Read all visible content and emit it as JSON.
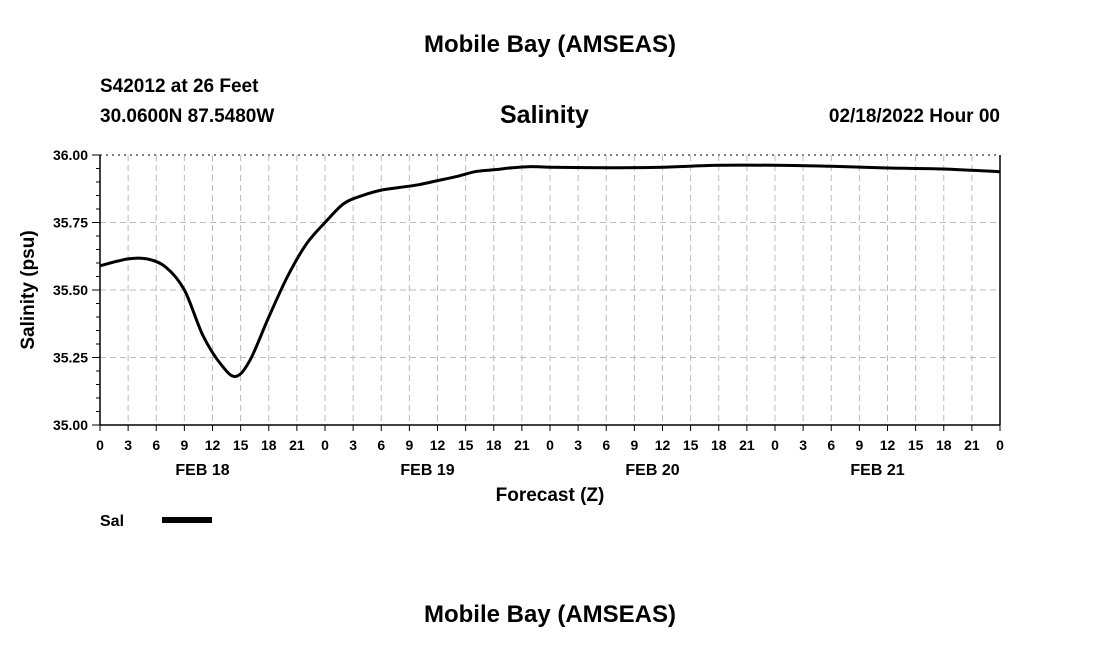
{
  "header": {
    "title": "Mobile Bay (AMSEAS)",
    "station": "S42012 at 26 Feet",
    "coords": "30.0600N  87.5480W",
    "chart_title": "Salinity",
    "datetime": "02/18/2022 Hour 00"
  },
  "footer": {
    "title": "Mobile Bay (AMSEAS)"
  },
  "chart_data": {
    "type": "line",
    "title": "Salinity",
    "xlabel": "Forecast (Z)",
    "ylabel": "Salinity (psu)",
    "ylim": [
      35.0,
      36.0
    ],
    "yticks": [
      "35.00",
      "35.25",
      "35.50",
      "35.75",
      "36.00"
    ],
    "xlim": [
      0,
      96
    ],
    "xtick_labels": [
      "0",
      "3",
      "6",
      "9",
      "12",
      "15",
      "18",
      "21",
      "0",
      "3",
      "6",
      "9",
      "12",
      "15",
      "18",
      "21",
      "0",
      "3",
      "6",
      "9",
      "12",
      "15",
      "18",
      "21",
      "0",
      "3",
      "6",
      "9",
      "12",
      "15",
      "18",
      "21",
      "0"
    ],
    "day_labels": [
      "FEB 18",
      "FEB 19",
      "FEB 20",
      "FEB 21"
    ],
    "grid": true,
    "legend": {
      "placement": "bottom-left",
      "label": "Sal"
    },
    "series": [
      {
        "name": "Sal",
        "color": "#000000",
        "x": [
          0,
          3,
          5,
          7,
          9,
          11,
          13,
          14.5,
          16,
          18,
          20,
          22,
          24,
          26,
          28,
          30,
          32,
          34,
          36,
          38,
          40,
          42,
          44,
          46,
          48,
          54,
          60,
          66,
          72,
          78,
          84,
          90,
          96
        ],
        "y": [
          35.59,
          35.615,
          35.615,
          35.585,
          35.5,
          35.33,
          35.22,
          35.18,
          35.24,
          35.4,
          35.55,
          35.67,
          35.75,
          35.82,
          35.85,
          35.87,
          35.88,
          35.89,
          35.905,
          35.92,
          35.938,
          35.945,
          35.953,
          35.957,
          35.955,
          35.953,
          35.955,
          35.962,
          35.962,
          35.958,
          35.952,
          35.948,
          35.938
        ]
      }
    ]
  }
}
